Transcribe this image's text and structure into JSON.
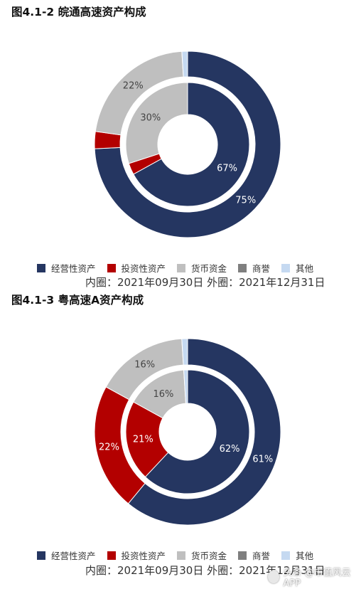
{
  "colors": {
    "经营性资产": "#253661",
    "投资性资产": "#b30000",
    "货币资金": "#bfbfbf",
    "商誉": "#7f7f7f",
    "其他": "#c5d9f1",
    "label_light": "#ffffff",
    "label_dark": "#444444"
  },
  "legend": [
    "经营性资产",
    "投资性资产",
    "货币资金",
    "商誉",
    "其他"
  ],
  "chart_data": [
    {
      "type": "donut",
      "title": "图4.1-2 皖通高速资产构成",
      "note": "内圈：2021年09月30日 外圈：2021年12月31日",
      "categories": [
        "经营性资产",
        "投资性资产",
        "货币资金",
        "商誉",
        "其他"
      ],
      "series": [
        {
          "ring": "inner",
          "values": [
            67,
            3,
            30,
            0,
            0
          ],
          "labels": [
            "67%",
            "",
            "30%",
            "",
            ""
          ]
        },
        {
          "ring": "outer",
          "values": [
            75,
            3,
            22,
            0,
            1
          ],
          "labels": [
            "75%",
            "",
            "22%",
            "",
            ""
          ]
        }
      ]
    },
    {
      "type": "donut",
      "title": "图4.1-3 粤高速A资产构成",
      "note": "内圈：2021年09月30日 外圈：2021年12月31日",
      "categories": [
        "经营性资产",
        "投资性资产",
        "货币资金",
        "商誉",
        "其他"
      ],
      "series": [
        {
          "ring": "inner",
          "values": [
            62,
            21,
            16,
            0,
            1
          ],
          "labels": [
            "62%",
            "21%",
            "16%",
            "",
            ""
          ]
        },
        {
          "ring": "outer",
          "values": [
            61,
            22,
            16,
            0,
            1
          ],
          "labels": [
            "61%",
            "22%",
            "16%",
            "",
            ""
          ]
        }
      ]
    }
  ],
  "watermark": "头条 @市值风云APP"
}
